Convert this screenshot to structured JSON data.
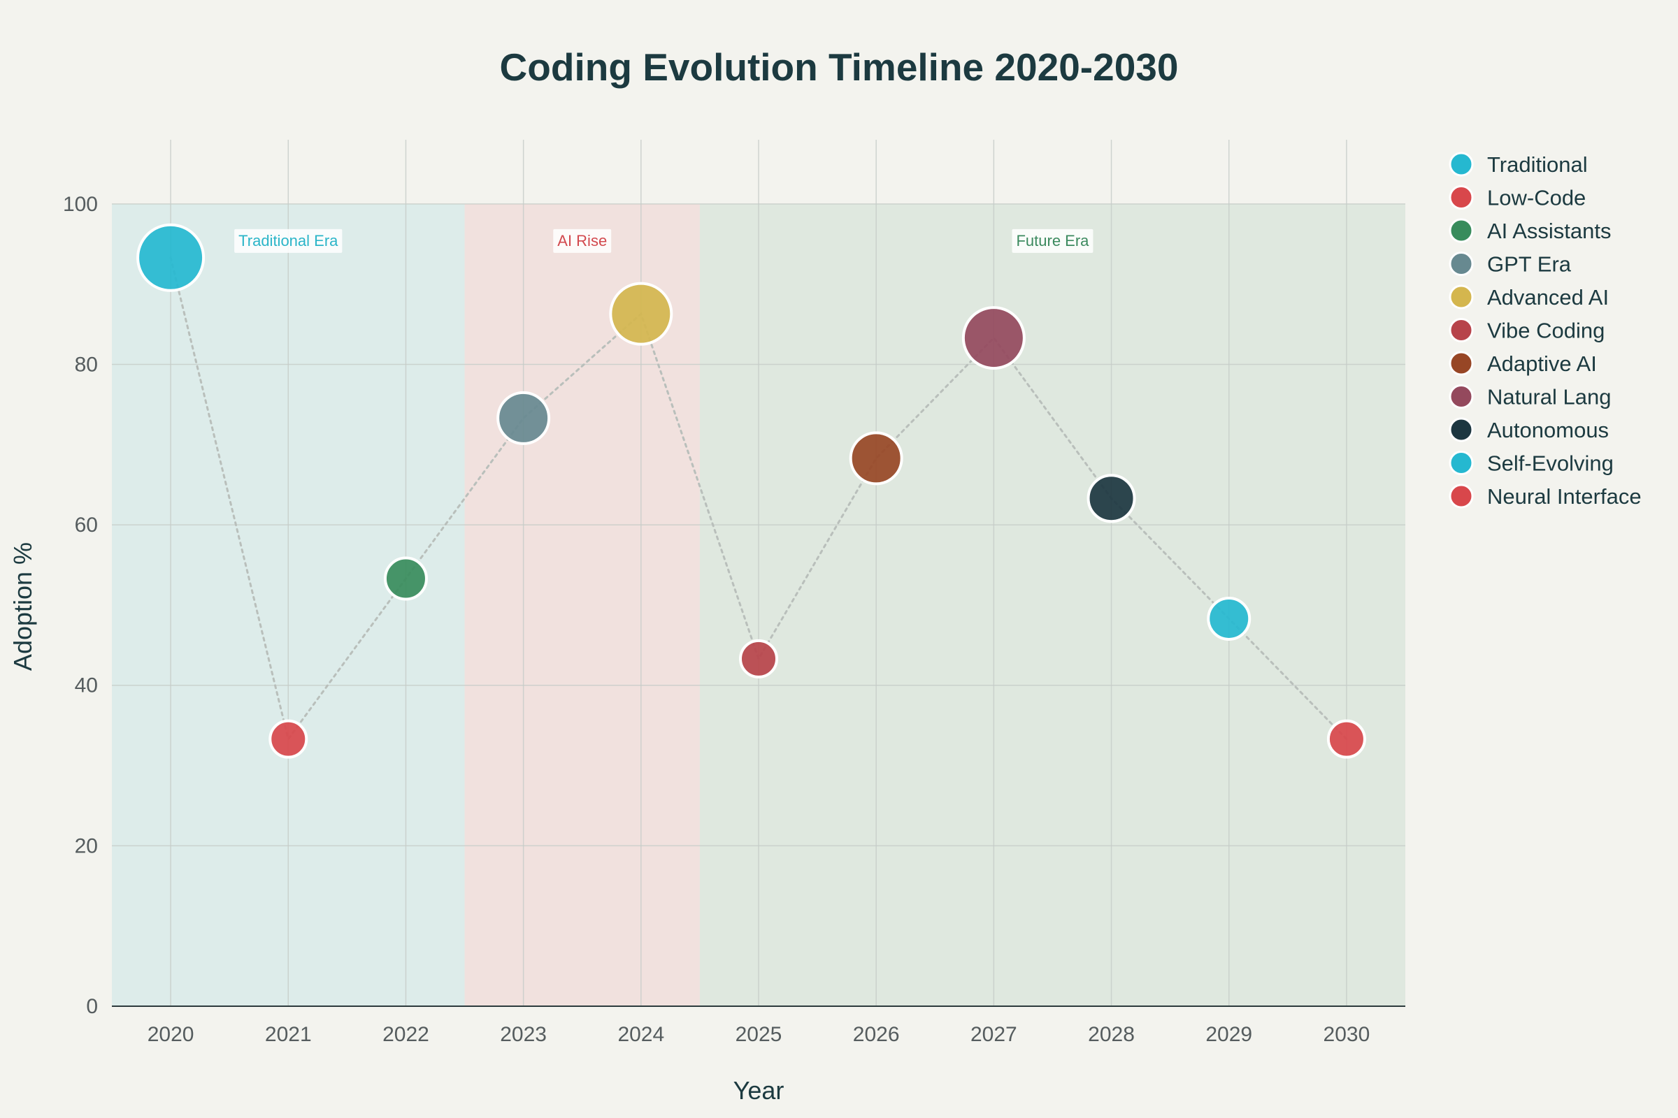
{
  "chart_data": {
    "type": "scatter",
    "title": "Coding Evolution Timeline 2020-2030",
    "xlabel": "Year",
    "ylabel": "Adoption %",
    "xlim": [
      2019.5,
      2030.5
    ],
    "ylim": [
      0,
      108
    ],
    "y_ticks": [
      0,
      20,
      40,
      60,
      80,
      100
    ],
    "x_ticks": [
      2020,
      2021,
      2022,
      2023,
      2024,
      2025,
      2026,
      2027,
      2028,
      2029,
      2030
    ],
    "grid": true,
    "legend_position": "top-right",
    "connector": "dotted gray line through points in year order",
    "eras": [
      {
        "label": "Traditional Era",
        "x_start": 2019.5,
        "x_end": 2022.5,
        "label_x": 2021,
        "y_top": 100,
        "fill": "#ddecea",
        "label_color": "#2bb5c8"
      },
      {
        "label": "AI Rise",
        "x_start": 2022.5,
        "x_end": 2024.5,
        "label_x": 2023.5,
        "y_top": 100,
        "fill": "#f1e1de",
        "label_color": "#d2494e"
      },
      {
        "label": "Future Era",
        "x_start": 2024.5,
        "x_end": 2030.5,
        "label_x": 2027.5,
        "y_top": 100,
        "fill": "#dfe8df",
        "label_color": "#3c8a5f"
      }
    ],
    "series": [
      {
        "name": "Traditional",
        "x": 2020,
        "y": 93.3,
        "color": "#25b8d0",
        "size": 5
      },
      {
        "name": "Low-Code",
        "x": 2021,
        "y": 33.3,
        "color": "#d8474b",
        "size": 2
      },
      {
        "name": "AI Assistants",
        "x": 2022,
        "y": 53.3,
        "color": "#388c5c",
        "size": 2.5
      },
      {
        "name": "GPT Era",
        "x": 2023,
        "y": 73.3,
        "color": "#678990",
        "size": 3.5
      },
      {
        "name": "Advanced AI",
        "x": 2024,
        "y": 86.3,
        "color": "#d4b64e",
        "size": 4.5
      },
      {
        "name": "Vibe Coding",
        "x": 2025,
        "y": 43.3,
        "color": "#b7434a",
        "size": 2
      },
      {
        "name": "Adaptive AI",
        "x": 2026,
        "y": 68.3,
        "color": "#974625",
        "size": 3.5
      },
      {
        "name": "Natural Lang",
        "x": 2027,
        "y": 83.3,
        "color": "#94495d",
        "size": 4.5
      },
      {
        "name": "Autonomous",
        "x": 2028,
        "y": 63.3,
        "color": "#1c3640",
        "size": 3
      },
      {
        "name": "Self-Evolving",
        "x": 2029,
        "y": 48.3,
        "color": "#25b8d0",
        "size": 2.5
      },
      {
        "name": "Neural Interface",
        "x": 2030,
        "y": 33.3,
        "color": "#d8474b",
        "size": 2
      }
    ]
  }
}
